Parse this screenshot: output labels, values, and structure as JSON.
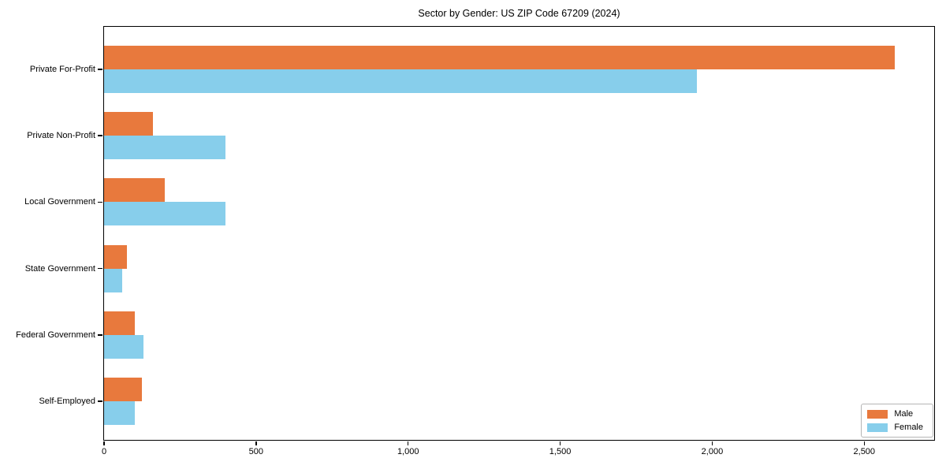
{
  "title": "Sector by Gender: US ZIP Code 67209 (2024)",
  "colors": {
    "male": "#E8793D",
    "female": "#87CEEB",
    "axis": "#000000",
    "legend_border": "#B5B5B5",
    "background": "#FFFFFF"
  },
  "chart_data": {
    "type": "bar",
    "orientation": "horizontal",
    "title": "Sector by Gender: US ZIP Code 67209 (2024)",
    "categories": [
      "Private For-Profit",
      "Private Non-Profit",
      "Local Government",
      "State Government",
      "Federal Government",
      "Self-Employed"
    ],
    "series": [
      {
        "name": "Male",
        "color": "#E8793D",
        "values": [
          2600,
          160,
          200,
          75,
          100,
          125
        ]
      },
      {
        "name": "Female",
        "color": "#87CEEB",
        "values": [
          1950,
          400,
          400,
          60,
          130,
          100
        ]
      }
    ],
    "xlabel": "",
    "ylabel": "",
    "xlim": [
      0,
      2730
    ],
    "x_ticks": [
      0,
      500,
      1000,
      1500,
      2000,
      2500
    ],
    "x_tick_labels": [
      "0",
      "500",
      "1,000",
      "1,500",
      "2,000",
      "2,500"
    ],
    "grid": false,
    "legend": {
      "position": "lower right",
      "entries": [
        "Male",
        "Female"
      ]
    }
  }
}
